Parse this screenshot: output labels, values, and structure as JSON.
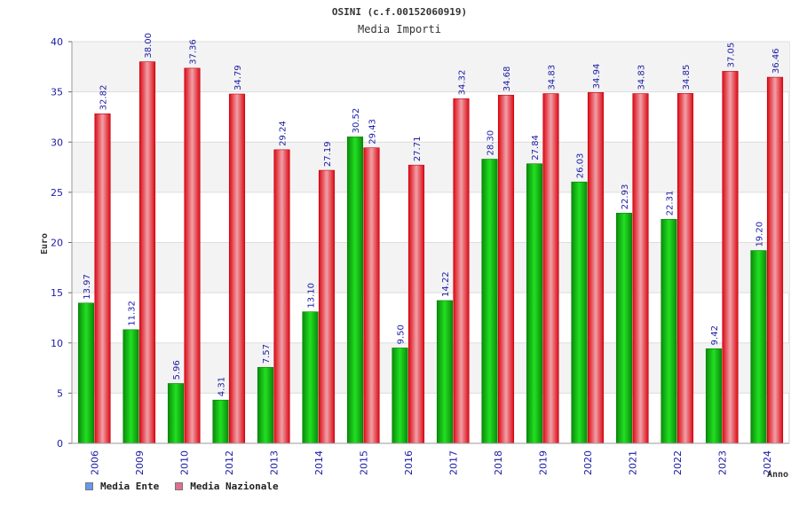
{
  "chart_data": {
    "type": "bar",
    "title": "OSINI (c.f.00152060919)",
    "subtitle": "Media Importi",
    "xlabel": "Anno",
    "ylabel": "Euro",
    "ylim": [
      0,
      40
    ],
    "yticks": [
      0,
      5,
      10,
      15,
      20,
      25,
      30,
      35,
      40
    ],
    "categories": [
      "2006",
      "2009",
      "2010",
      "2012",
      "2013",
      "2014",
      "2015",
      "2016",
      "2017",
      "2018",
      "2019",
      "2020",
      "2021",
      "2022",
      "2023",
      "2024"
    ],
    "series": [
      {
        "name": "Media Ente",
        "values": [
          13.97,
          11.32,
          5.96,
          4.31,
          7.57,
          13.1,
          30.52,
          9.5,
          14.22,
          28.3,
          27.84,
          26.03,
          22.93,
          22.31,
          9.42,
          19.2
        ],
        "labels": [
          "13.97",
          "11.32",
          "5.96",
          "4.31",
          "7.57",
          "13.10",
          "30.52",
          "9.50",
          "14.22",
          "28.30",
          "27.84",
          "26.03",
          "22.93",
          "22.31",
          "9.42",
          "19.20"
        ],
        "bar_color": "#10b010",
        "legend_color": "#6699ee"
      },
      {
        "name": "Media Nazionale",
        "values": [
          32.82,
          38.0,
          37.36,
          34.79,
          29.24,
          27.19,
          29.43,
          27.71,
          34.32,
          34.68,
          34.83,
          34.94,
          34.83,
          34.85,
          37.05,
          36.46
        ],
        "labels": [
          "32.82",
          "38.00",
          "37.36",
          "34.79",
          "29.24",
          "27.19",
          "29.43",
          "27.71",
          "34.32",
          "34.68",
          "34.83",
          "34.94",
          "34.83",
          "34.85",
          "37.05",
          "36.46"
        ],
        "bar_color": "#ee1122",
        "legend_color": "#e07090"
      }
    ],
    "grid": true,
    "legend_position": "bottom-left"
  }
}
